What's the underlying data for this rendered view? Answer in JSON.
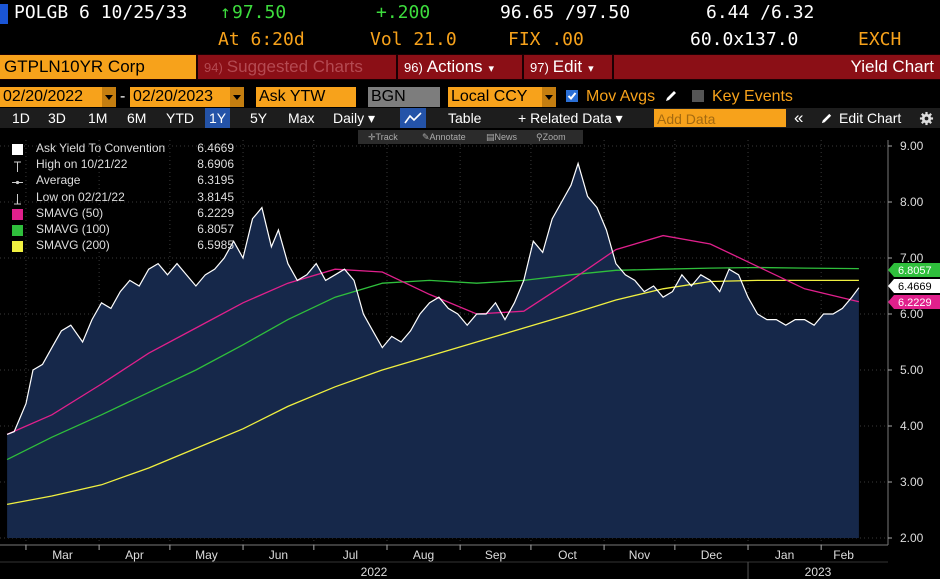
{
  "header": {
    "security": "POLGB 6 10/25/33",
    "price_change_arrow": "↑",
    "price": "97.50",
    "change": "+.200",
    "bid_ask": "96.65 /97.50",
    "yield_bid_ask": "6.44 /6.32",
    "time": "At 6:20d",
    "vol": "Vol 21.0",
    "source": "FIX .00",
    "size": "60.0x137.0",
    "exch": "EXCH"
  },
  "menu": {
    "ticker": "GTPLN10YR Corp",
    "suggested_num": "94)",
    "suggested_label": "Suggested Charts",
    "actions_num": "96)",
    "actions_label": "Actions",
    "edit_num": "97)",
    "edit_label": "Edit",
    "caret": "▾",
    "title": "Yield Chart"
  },
  "inputs": {
    "start_date": "02/20/2022",
    "dash": "-",
    "end_date": "02/20/2023",
    "field": "Ask YTW",
    "source": "BGN",
    "currency": "Local CCY",
    "mov_avgs": "Mov Avgs",
    "key_events": "Key Events"
  },
  "toolbar": {
    "periods": [
      "1D",
      "3D",
      "1M",
      "6M",
      "YTD",
      "1Y",
      "5Y",
      "Max"
    ],
    "active_period": "1Y",
    "frequency": "Daily ▾",
    "table": "Table",
    "related": "+ Related Data ▾",
    "add_data_placeholder": "Add Data",
    "collapse": "«",
    "edit_chart": "Edit Chart",
    "track": "Track",
    "annotate": "Annotate",
    "news": "News",
    "zoom": "Zoom"
  },
  "legend": [
    {
      "label": "Ask Yield To Convention",
      "value": "6.4669",
      "marker": "box-white"
    },
    {
      "label": "High on 10/21/22",
      "value": "8.6906",
      "marker": "high"
    },
    {
      "label": "Average",
      "value": "6.3195",
      "marker": "avg"
    },
    {
      "label": "Low on 02/21/22",
      "value": "3.8145",
      "marker": "low"
    },
    {
      "label": "SMAVG (50)",
      "value": "6.2229",
      "marker": "#e0208c"
    },
    {
      "label": "SMAVG (100)",
      "value": "6.8057",
      "marker": "#2fbf3c"
    },
    {
      "label": "SMAVG (200)",
      "value": "6.5985",
      "marker": "#f0f040"
    }
  ],
  "colors": {
    "accent_orange": "#f7a21b",
    "menu_red": "#8b0f16",
    "yield_line": "#ffffff",
    "area_fill": "#16284a",
    "sma50": "#e0208c",
    "sma100": "#2fbf3c",
    "sma200": "#f0f040"
  },
  "chart_data": {
    "type": "area",
    "ylim": [
      2.0,
      9.0
    ],
    "y_ticks": [
      "2.00",
      "3.00",
      "4.00",
      "5.00",
      "6.00",
      "7.00",
      "8.00",
      "9.00"
    ],
    "x_months": [
      "Mar",
      "Apr",
      "May",
      "Jun",
      "Jul",
      "Aug",
      "Sep",
      "Oct",
      "Nov",
      "Dec",
      "Jan",
      "Feb"
    ],
    "x_years": [
      "2022",
      "2023"
    ],
    "last_labels": [
      {
        "value": "6.8057",
        "color": "#2fbf3c",
        "text_color": "#fff"
      },
      {
        "value": "6.4669",
        "color": "#ffffff",
        "text_color": "#000"
      },
      {
        "value": "6.2229",
        "color": "#e0208c",
        "text_color": "#fff"
      }
    ],
    "series": [
      {
        "name": "Ask Yield To Convention",
        "x": [
          "2022-02-21",
          "2022-02-24",
          "2022-03-01",
          "2022-03-04",
          "2022-03-08",
          "2022-03-12",
          "2022-03-16",
          "2022-03-20",
          "2022-03-25",
          "2022-03-29",
          "2022-04-02",
          "2022-04-06",
          "2022-04-10",
          "2022-04-14",
          "2022-04-18",
          "2022-04-22",
          "2022-04-26",
          "2022-04-30",
          "2022-05-04",
          "2022-05-08",
          "2022-05-12",
          "2022-05-16",
          "2022-05-20",
          "2022-05-24",
          "2022-05-28",
          "2022-06-01",
          "2022-06-05",
          "2022-06-09",
          "2022-06-13",
          "2022-06-16",
          "2022-06-20",
          "2022-06-24",
          "2022-06-28",
          "2022-07-02",
          "2022-07-06",
          "2022-07-10",
          "2022-07-14",
          "2022-07-18",
          "2022-07-22",
          "2022-07-26",
          "2022-07-30",
          "2022-08-03",
          "2022-08-07",
          "2022-08-11",
          "2022-08-15",
          "2022-08-19",
          "2022-08-23",
          "2022-08-27",
          "2022-08-31",
          "2022-09-04",
          "2022-09-08",
          "2022-09-12",
          "2022-09-16",
          "2022-09-20",
          "2022-09-24",
          "2022-09-28",
          "2022-10-02",
          "2022-10-06",
          "2022-10-10",
          "2022-10-14",
          "2022-10-18",
          "2022-10-21",
          "2022-10-25",
          "2022-10-29",
          "2022-11-02",
          "2022-11-06",
          "2022-11-10",
          "2022-11-14",
          "2022-11-18",
          "2022-11-22",
          "2022-11-26",
          "2022-11-30",
          "2022-12-04",
          "2022-12-08",
          "2022-12-12",
          "2022-12-16",
          "2022-12-20",
          "2022-12-24",
          "2022-12-28",
          "2023-01-01",
          "2023-01-05",
          "2023-01-09",
          "2023-01-13",
          "2023-01-17",
          "2023-01-21",
          "2023-01-25",
          "2023-01-29",
          "2023-02-02",
          "2023-02-06",
          "2023-02-10",
          "2023-02-14",
          "2023-02-17"
        ],
        "values": [
          3.85,
          3.9,
          4.4,
          5.0,
          5.1,
          5.4,
          5.7,
          5.8,
          5.5,
          5.9,
          6.2,
          6.1,
          6.4,
          6.6,
          6.5,
          6.8,
          6.9,
          6.7,
          6.9,
          6.7,
          6.5,
          6.7,
          6.8,
          7.0,
          7.3,
          7.0,
          7.7,
          7.9,
          7.2,
          7.5,
          6.9,
          6.6,
          6.7,
          6.9,
          6.6,
          6.7,
          6.8,
          6.6,
          6.0,
          5.7,
          5.4,
          5.6,
          5.5,
          5.7,
          6.0,
          6.2,
          6.3,
          6.1,
          6.0,
          5.8,
          6.0,
          6.0,
          6.2,
          5.9,
          6.2,
          6.6,
          7.3,
          7.1,
          7.7,
          8.0,
          8.3,
          8.69,
          8.1,
          7.9,
          7.5,
          6.9,
          6.7,
          6.6,
          6.4,
          6.5,
          6.3,
          6.4,
          6.7,
          6.5,
          6.7,
          6.6,
          6.4,
          6.8,
          6.7,
          6.3,
          6.0,
          5.9,
          5.9,
          5.8,
          5.9,
          5.9,
          5.8,
          6.0,
          6.0,
          6.1,
          6.3,
          6.47
        ]
      },
      {
        "name": "SMAVG (50)",
        "x": [
          "2022-02-21",
          "2022-03-12",
          "2022-04-02",
          "2022-04-22",
          "2022-05-12",
          "2022-06-01",
          "2022-06-20",
          "2022-07-10",
          "2022-07-30",
          "2022-08-19",
          "2022-09-08",
          "2022-09-28",
          "2022-10-18",
          "2022-11-06",
          "2022-11-26",
          "2022-12-16",
          "2023-01-05",
          "2023-01-25",
          "2023-02-17"
        ],
        "values": [
          3.85,
          4.2,
          4.75,
          5.3,
          5.75,
          6.2,
          6.55,
          6.8,
          6.75,
          6.35,
          6.0,
          6.05,
          6.6,
          7.15,
          7.4,
          7.25,
          6.85,
          6.45,
          6.22
        ]
      },
      {
        "name": "SMAVG (100)",
        "x": [
          "2022-02-21",
          "2022-03-12",
          "2022-04-02",
          "2022-04-22",
          "2022-05-12",
          "2022-06-01",
          "2022-06-20",
          "2022-07-10",
          "2022-07-30",
          "2022-08-19",
          "2022-09-08",
          "2022-09-28",
          "2022-10-18",
          "2022-11-06",
          "2022-11-26",
          "2022-12-16",
          "2023-01-05",
          "2023-01-25",
          "2023-02-17"
        ],
        "values": [
          3.4,
          3.8,
          4.2,
          4.6,
          5.0,
          5.45,
          5.9,
          6.3,
          6.55,
          6.6,
          6.55,
          6.6,
          6.7,
          6.78,
          6.8,
          6.82,
          6.83,
          6.82,
          6.81
        ]
      },
      {
        "name": "SMAVG (200)",
        "x": [
          "2022-02-21",
          "2022-03-12",
          "2022-04-02",
          "2022-04-22",
          "2022-05-12",
          "2022-06-01",
          "2022-06-20",
          "2022-07-10",
          "2022-07-30",
          "2022-08-19",
          "2022-09-08",
          "2022-09-28",
          "2022-10-18",
          "2022-11-06",
          "2022-11-26",
          "2022-12-16",
          "2023-01-05",
          "2023-01-25",
          "2023-02-17"
        ],
        "values": [
          2.6,
          2.75,
          2.95,
          3.25,
          3.6,
          3.95,
          4.35,
          4.7,
          5.0,
          5.25,
          5.5,
          5.75,
          6.0,
          6.25,
          6.45,
          6.58,
          6.6,
          6.6,
          6.6
        ]
      }
    ]
  }
}
